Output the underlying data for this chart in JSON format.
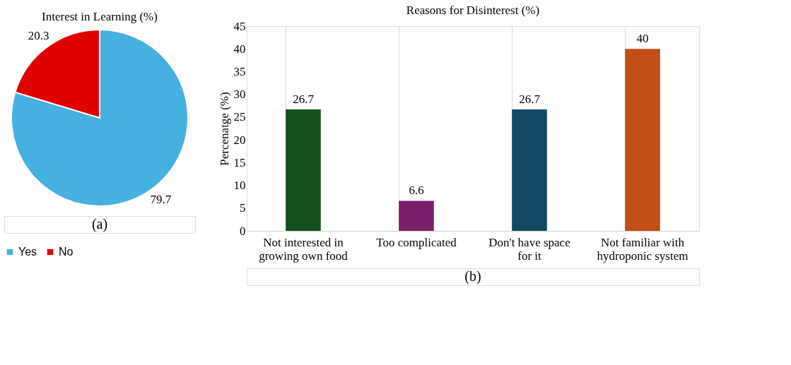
{
  "chart_data": [
    {
      "type": "pie",
      "title": "Interest in Learning (%)",
      "categories": [
        "Yes",
        "No"
      ],
      "values": [
        79.7,
        20.3
      ],
      "colors": [
        "#46b0e0",
        "#e00000"
      ],
      "data_labels": true,
      "legend": "bottom",
      "annotations": [
        "(a)"
      ]
    },
    {
      "type": "bar",
      "title": "Reasons for Disinterest (%)",
      "ylabel": "Percenatge (%)",
      "categories": [
        "Not interested in growing own food",
        "Too complicated",
        "Don't have space for it",
        "Not familiar with hydroponic system"
      ],
      "values": [
        26.7,
        6.6,
        26.7,
        40
      ],
      "colors": [
        "#154f1c",
        "#7b1f6b",
        "#134a63",
        "#c04e16"
      ],
      "ylim": [
        0,
        45
      ],
      "yticks": [
        0,
        5,
        10,
        15,
        20,
        25,
        30,
        35,
        40,
        45
      ],
      "grid": "x",
      "data_labels": true,
      "annotations": [
        "(b)"
      ]
    }
  ]
}
